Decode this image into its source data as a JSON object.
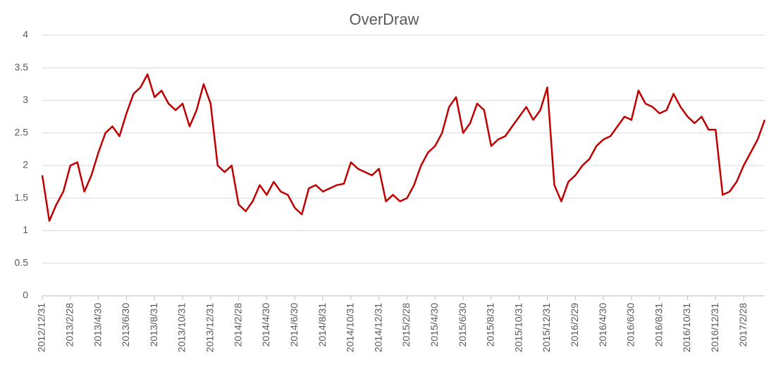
{
  "chart_data": {
    "type": "line",
    "title": "OverDraw",
    "categories": [
      "2012/12/31",
      null,
      null,
      null,
      "2013/2/28",
      null,
      null,
      null,
      "2013/4/30",
      null,
      null,
      null,
      "2013/6/30",
      null,
      null,
      null,
      "2013/8/31",
      null,
      null,
      null,
      "2013/10/31",
      null,
      null,
      null,
      "2013/12/31",
      null,
      null,
      null,
      "2014/2/28",
      null,
      null,
      null,
      "2014/4/30",
      null,
      null,
      null,
      "2014/6/30",
      null,
      null,
      null,
      "2014/8/31",
      null,
      null,
      null,
      "2014/10/31",
      null,
      null,
      null,
      "2014/12/31",
      null,
      null,
      null,
      "2015/2/28",
      null,
      null,
      null,
      "2015/4/30",
      null,
      null,
      null,
      "2015/6/30",
      null,
      null,
      null,
      "2015/8/31",
      null,
      null,
      null,
      "2015/10/31",
      null,
      null,
      null,
      "2015/12/31",
      null,
      null,
      null,
      "2016/2/29",
      null,
      null,
      null,
      "2016/4/30",
      null,
      null,
      null,
      "2016/6/30",
      null,
      null,
      null,
      "2016/8/31",
      null,
      null,
      null,
      "2016/10/31",
      null,
      null,
      null,
      "2016/12/31",
      null,
      null,
      null,
      "2017/2/28",
      null,
      null,
      null
    ],
    "series": [
      {
        "name": "OverDraw",
        "color": "#c00000",
        "values": [
          1.85,
          1.15,
          1.4,
          1.6,
          2.0,
          2.05,
          1.6,
          1.85,
          2.2,
          2.5,
          2.6,
          2.45,
          2.8,
          3.1,
          3.2,
          3.4,
          3.05,
          3.15,
          2.95,
          2.85,
          2.95,
          2.6,
          2.85,
          3.25,
          2.95,
          2.0,
          1.9,
          2.0,
          1.4,
          1.3,
          1.45,
          1.7,
          1.55,
          1.75,
          1.6,
          1.55,
          1.35,
          1.25,
          1.65,
          1.7,
          1.6,
          1.65,
          1.7,
          1.72,
          2.05,
          1.95,
          1.9,
          1.85,
          1.95,
          1.45,
          1.55,
          1.45,
          1.5,
          1.7,
          2.0,
          2.2,
          2.3,
          2.5,
          2.9,
          3.05,
          2.5,
          2.65,
          2.95,
          2.85,
          2.3,
          2.4,
          2.45,
          2.6,
          2.75,
          2.9,
          2.7,
          2.85,
          3.2,
          1.7,
          1.45,
          1.75,
          1.85,
          2.0,
          2.1,
          2.3,
          2.4,
          2.45,
          2.6,
          2.75,
          2.7,
          3.15,
          2.95,
          2.9,
          2.8,
          2.85,
          3.1,
          2.9,
          2.75,
          2.65,
          2.75,
          2.55,
          2.55,
          1.55,
          1.6,
          1.75,
          2.0,
          2.2,
          2.4,
          2.7
        ]
      }
    ],
    "ylim": [
      0,
      4
    ],
    "yticks": [
      0,
      0.5,
      1,
      1.5,
      2,
      2.5,
      3,
      3.5,
      4
    ],
    "grid": true
  }
}
